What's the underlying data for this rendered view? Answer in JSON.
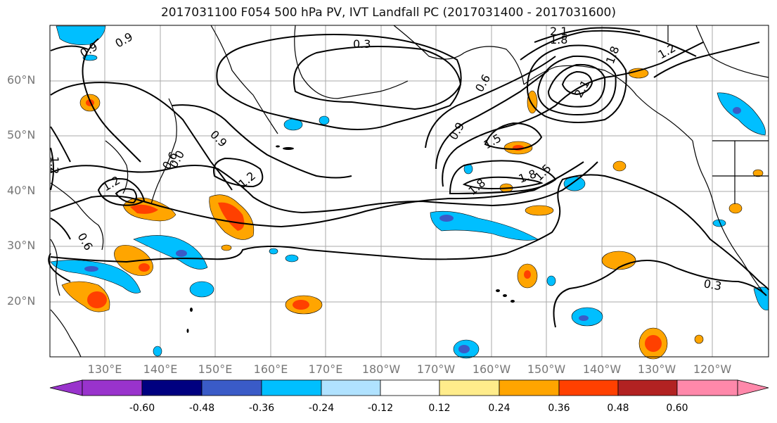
{
  "title": "2017031100 F054 500 hPa PV, IVT Landfall PC (2017031400 - 2017031600)",
  "lat_labels": [
    "60°N",
    "50°N",
    "40°N",
    "30°N",
    "20°N"
  ],
  "lon_labels": [
    "130°E",
    "140°E",
    "150°E",
    "160°E",
    "170°E",
    "180°W",
    "170°W",
    "160°W",
    "150°W",
    "140°W",
    "130°W",
    "120°W"
  ],
  "contour_labels": [
    "0.3",
    "0.9",
    "0.9",
    "0.9",
    "0.6",
    "0.6",
    "1.2",
    "1.2",
    "1.2",
    "1.5",
    "1.8",
    "1.8",
    "1.5",
    "0.9",
    "2.1",
    "1.8",
    "1.8",
    "2.1",
    "0.3",
    "0.0",
    "1.2",
    "0.6"
  ],
  "colorbar": {
    "tick_labels": [
      "-0.60",
      "-0.48",
      "-0.36",
      "-0.24",
      "-0.12",
      "0.12",
      "0.24",
      "0.36",
      "0.48",
      "0.60"
    ],
    "colors": [
      "#9933cc",
      "#000080",
      "#3a5bc7",
      "#00bfff",
      "#b0e2ff",
      "#ffffff",
      "#ffec8b",
      "#ffa500",
      "#ff4000",
      "#b22222",
      "#ff88aa"
    ]
  },
  "fill_colors": {
    "orange_light": "#ffec8b",
    "orange": "#ffa500",
    "red": "#ff4000",
    "blue_light": "#b0e2ff",
    "blue": "#00bfff",
    "blue_dark": "#3a5bc7"
  }
}
